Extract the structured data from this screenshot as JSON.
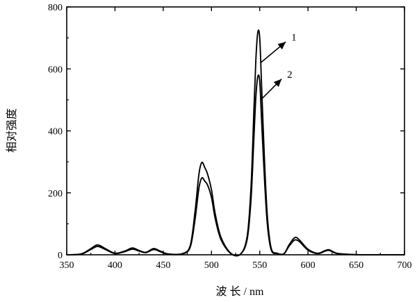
{
  "chart_data": {
    "type": "line",
    "title": "",
    "xlabel": "波 长 / nm",
    "ylabel": "相对强度",
    "xlim": [
      350,
      700
    ],
    "ylim": [
      0,
      800
    ],
    "xticks": [
      "350",
      "400",
      "450",
      "500",
      "550",
      "600",
      "650",
      "700"
    ],
    "yticks": [
      "0",
      "200",
      "400",
      "600",
      "800"
    ],
    "grid": false,
    "legend": "none",
    "colors": {
      "line": "#000000",
      "axis": "#000000"
    },
    "series": [
      {
        "label": "1",
        "x": [
          350,
          365,
          375,
          382,
          390,
          400,
          410,
          418,
          425,
          432,
          440,
          447,
          455,
          470,
          478,
          483,
          487,
          490,
          493,
          496,
          500,
          504,
          510,
          520,
          530,
          537,
          541,
          544,
          546,
          548,
          550,
          552,
          555,
          558,
          562,
          568,
          575,
          580,
          585,
          588,
          592,
          600,
          610,
          618,
          622,
          630,
          645,
          660,
          700
        ],
        "y": [
          0,
          3,
          20,
          32,
          20,
          5,
          12,
          22,
          14,
          8,
          20,
          12,
          3,
          4,
          30,
          140,
          260,
          298,
          282,
          260,
          210,
          130,
          55,
          5,
          2,
          60,
          220,
          470,
          630,
          718,
          700,
          540,
          300,
          120,
          20,
          5,
          3,
          30,
          52,
          56,
          45,
          18,
          5,
          14,
          16,
          5,
          1,
          0,
          0
        ]
      },
      {
        "label": "2",
        "x": [
          350,
          365,
          375,
          382,
          390,
          400,
          410,
          418,
          425,
          432,
          440,
          447,
          455,
          470,
          478,
          483,
          487,
          490,
          493,
          496,
          500,
          504,
          510,
          520,
          530,
          537,
          541,
          544,
          546,
          548,
          550,
          552,
          555,
          558,
          562,
          568,
          575,
          580,
          585,
          588,
          592,
          600,
          610,
          618,
          622,
          630,
          645,
          660,
          700
        ],
        "y": [
          0,
          2,
          17,
          27,
          17,
          4,
          10,
          18,
          12,
          7,
          17,
          10,
          2,
          3,
          25,
          115,
          215,
          248,
          238,
          225,
          185,
          115,
          48,
          4,
          2,
          50,
          180,
          380,
          510,
          575,
          560,
          430,
          240,
          95,
          15,
          4,
          3,
          26,
          45,
          48,
          40,
          15,
          4,
          12,
          14,
          4,
          1,
          0,
          0
        ]
      }
    ]
  }
}
